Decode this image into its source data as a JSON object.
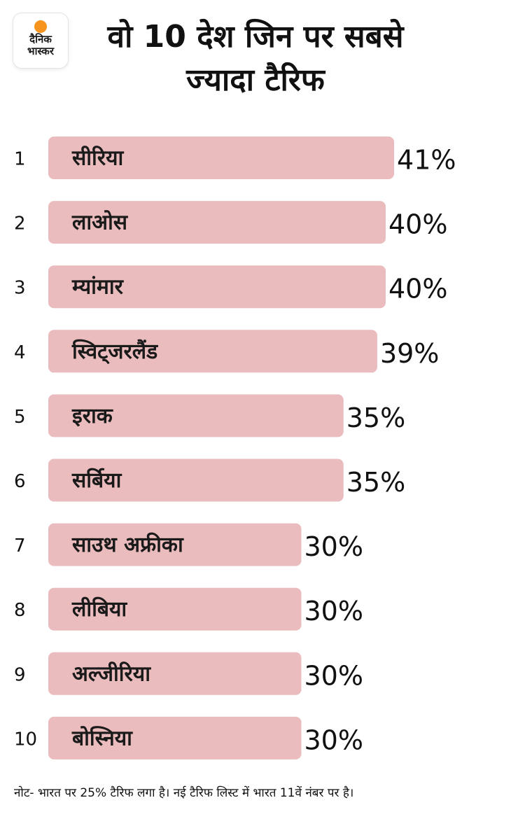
{
  "logo": {
    "line1": "दैनिक",
    "line2": "भास्कर",
    "sun_color": "#f7941d"
  },
  "title": "वो 10 देश जिन पर सबसे ज्यादा टैरिफ",
  "colors": {
    "bar": "#ebbcbd",
    "text": "#111111"
  },
  "chart_data": {
    "type": "bar",
    "orientation": "horizontal",
    "title": "वो 10 देश जिन पर सबसे ज्यादा टैरिफ",
    "ranks": [
      "1",
      "2",
      "3",
      "4",
      "5",
      "6",
      "7",
      "8",
      "9",
      "10"
    ],
    "categories": [
      "सीरिया",
      "लाओस",
      "म्यांमार",
      "स्विट्जरलैंड",
      "इराक",
      "सर्बिया",
      "साउथ अफ्रीका",
      "लीबिया",
      "अल्जीरिया",
      "बोस्निया"
    ],
    "values": [
      41,
      40,
      40,
      39,
      35,
      35,
      30,
      30,
      30,
      30
    ],
    "value_labels": [
      "41%",
      "40%",
      "40%",
      "39%",
      "35%",
      "35%",
      "30%",
      "30%",
      "30%",
      "30%"
    ],
    "unit": "%",
    "grid": false,
    "legend": "none"
  },
  "footnote": "नोट- भारत पर 25% टैरिफ लगा है। नई टैरिफ लिस्ट में भारत 11वें नंबर पर है।"
}
